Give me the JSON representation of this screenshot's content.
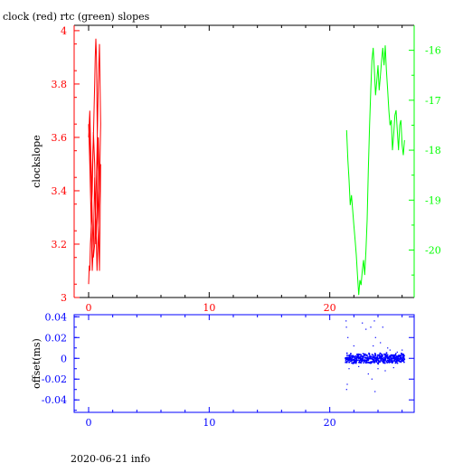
{
  "title": "clock (red) rtc (green) slopes",
  "footer": "2020-06-21 info",
  "colors": {
    "red": "#ff0000",
    "green": "#00ff00",
    "blue": "#0000ff",
    "axis": "#000000"
  },
  "chart_data": [
    {
      "type": "line",
      "name": "slopes",
      "xlim": [
        -1.2,
        27
      ],
      "x_ticks": [
        0,
        10,
        20
      ],
      "ylabel": "clockslope",
      "left_axis": {
        "ylim": [
          3,
          4.02
        ],
        "ticks": [
          3,
          3.2,
          3.4,
          3.6,
          3.8,
          4
        ],
        "tick_labels": [
          "3",
          "3.2",
          "3.4",
          "3.6",
          "3.8",
          "4"
        ]
      },
      "right_axis": {
        "ylim": [
          -20.95,
          -15.5
        ],
        "ticks": [
          -16,
          -17,
          -18,
          -19,
          -20
        ],
        "tick_labels": [
          "-16",
          "-17",
          "-18",
          "-19",
          "-20"
        ]
      },
      "series": [
        {
          "color": "red",
          "axis": "left",
          "x": [
            0.0,
            0.05,
            0.1,
            0.15,
            0.2,
            0.25,
            0.3,
            0.35,
            0.4,
            0.45,
            0.5,
            0.55,
            0.6,
            0.65,
            0.7,
            0.75,
            0.8,
            0.85,
            0.9,
            0.95,
            1.0,
            0.9,
            0.8,
            0.7,
            0.6,
            0.5,
            0.4,
            0.3,
            0.2,
            0.1,
            0.05,
            0.0,
            0.1,
            0.2,
            0.3,
            0.4,
            0.5,
            0.6,
            0.7,
            0.8,
            0.9,
            1.0,
            0.9,
            0.8,
            0.7,
            0.6,
            0.5,
            0.4,
            0.3,
            0.2,
            0.1,
            0.0
          ],
          "y": [
            3.05,
            3.12,
            3.1,
            3.2,
            3.25,
            3.3,
            3.45,
            3.55,
            3.6,
            3.7,
            3.8,
            3.9,
            3.97,
            3.9,
            3.7,
            3.5,
            3.3,
            3.2,
            3.1,
            3.3,
            3.5,
            3.4,
            3.6,
            3.3,
            3.2,
            3.5,
            3.62,
            3.4,
            3.3,
            3.55,
            3.65,
            3.6,
            3.7,
            3.5,
            3.3,
            3.15,
            3.2,
            3.35,
            3.55,
            3.8,
            3.95,
            3.65,
            3.4,
            3.25,
            3.1,
            3.3,
            3.45,
            3.2,
            3.1,
            3.3,
            3.5,
            3.65
          ]
        },
        {
          "color": "green",
          "axis": "right",
          "x": [
            21.4,
            21.5,
            21.6,
            21.7,
            21.8,
            21.9,
            22.0,
            22.1,
            22.2,
            22.3,
            22.4,
            22.5,
            22.6,
            22.7,
            22.8,
            22.9,
            23.0,
            23.1,
            23.2,
            23.3,
            23.4,
            23.5,
            23.6,
            23.7,
            23.8,
            23.9,
            24.0,
            24.1,
            24.2,
            24.3,
            24.4,
            24.5,
            24.6,
            24.7,
            24.8,
            24.9,
            25.0,
            25.1,
            25.2,
            25.3,
            25.4,
            25.5,
            25.6,
            25.7,
            25.8,
            25.9,
            26.0,
            26.1,
            26.2
          ],
          "y": [
            -17.6,
            -18.2,
            -18.6,
            -19.1,
            -18.9,
            -19.2,
            -19.5,
            -19.8,
            -20.1,
            -20.5,
            -20.9,
            -20.6,
            -20.7,
            -20.4,
            -20.2,
            -20.5,
            -20.0,
            -19.4,
            -18.4,
            -17.5,
            -16.8,
            -16.2,
            -15.95,
            -16.4,
            -16.9,
            -16.6,
            -16.3,
            -16.8,
            -16.5,
            -16.2,
            -15.95,
            -16.3,
            -15.9,
            -16.4,
            -16.8,
            -17.2,
            -17.5,
            -17.4,
            -18.0,
            -17.7,
            -17.3,
            -17.2,
            -17.6,
            -18.0,
            -17.5,
            -17.4,
            -17.9,
            -18.1,
            -17.8
          ]
        }
      ]
    },
    {
      "type": "scatter",
      "name": "offset",
      "ylabel": "offset(ms)",
      "xlim": [
        -1.2,
        27
      ],
      "x_ticks": [
        0,
        10,
        20
      ],
      "ylim": [
        -0.052,
        0.042
      ],
      "y_ticks": [
        0.04,
        0.02,
        0,
        -0.02,
        -0.04
      ],
      "y_tick_labels": [
        "0.04",
        "0.02",
        "0",
        "-0.02",
        "-0.04"
      ],
      "series": [
        {
          "color": "blue",
          "x_range": [
            21.3,
            26.2
          ],
          "band": 0.004,
          "outliers": [
            [
              21.35,
              0.036
            ],
            [
              21.38,
              0.03
            ],
            [
              21.4,
              -0.03
            ],
            [
              21.45,
              -0.025
            ],
            [
              21.5,
              0.02
            ],
            [
              21.6,
              -0.01
            ],
            [
              22.0,
              0.012
            ],
            [
              22.4,
              -0.008
            ],
            [
              22.7,
              0.034
            ],
            [
              23.0,
              0.028
            ],
            [
              23.2,
              -0.015
            ],
            [
              23.4,
              0.03
            ],
            [
              23.5,
              -0.02
            ],
            [
              23.6,
              0.012
            ],
            [
              23.7,
              0.036
            ],
            [
              23.75,
              -0.032
            ],
            [
              23.8,
              0.02
            ],
            [
              24.0,
              -0.01
            ],
            [
              24.2,
              0.015
            ],
            [
              24.4,
              0.03
            ],
            [
              24.6,
              -0.012
            ],
            [
              24.8,
              0.01
            ],
            [
              25.0,
              0.008
            ],
            [
              25.3,
              -0.009
            ],
            [
              25.6,
              0.006
            ],
            [
              26.0,
              0.008
            ]
          ]
        }
      ]
    }
  ]
}
